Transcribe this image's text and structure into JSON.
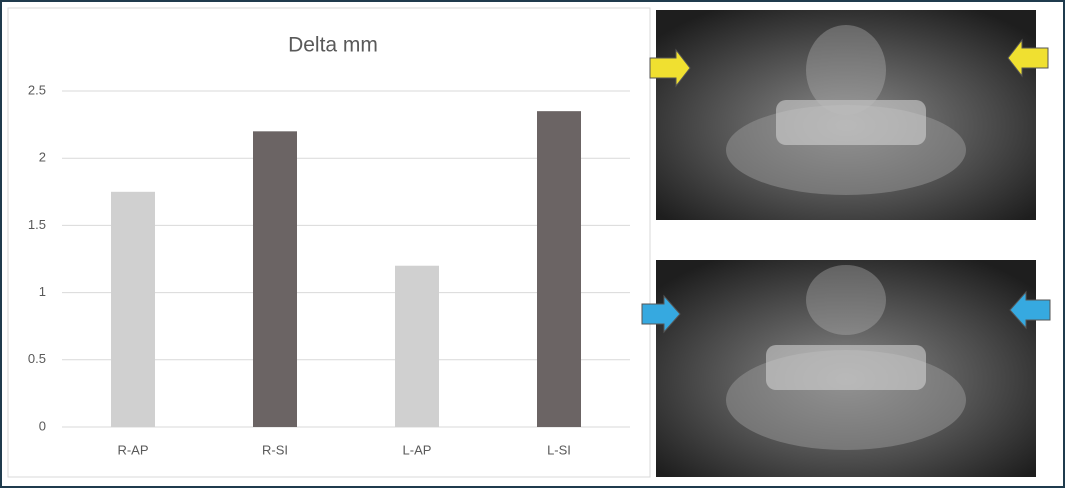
{
  "chart_data": {
    "type": "bar",
    "title": "Delta mm",
    "categories": [
      "R-AP",
      "R-SI",
      "L-AP",
      "L-SI"
    ],
    "values": [
      1.75,
      2.2,
      1.2,
      2.35
    ],
    "colors": [
      "#d0d0d0",
      "#6b6464",
      "#d0d0d0",
      "#6b6464"
    ],
    "ylim": [
      0,
      2.5
    ],
    "yticks": [
      0,
      0.5,
      1,
      1.5,
      2,
      2.5
    ],
    "grid": true
  }
}
